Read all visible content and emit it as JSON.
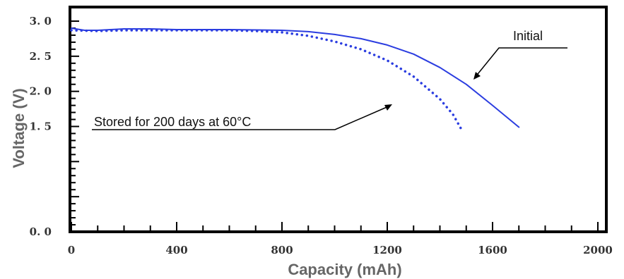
{
  "chart_data": {
    "type": "line",
    "title": "",
    "xlabel": "Capacity (mAh)",
    "ylabel": "Voltage (V)",
    "xlim": [
      0,
      2000
    ],
    "ylim": [
      0,
      3.0
    ],
    "x_ticks": [
      "0",
      "400",
      "800",
      "1200",
      "1600",
      "2000"
    ],
    "y_ticks": [
      "0. 0",
      "1. 5",
      "2. 0",
      "2. 5",
      "3. 0"
    ],
    "grid": false,
    "series": [
      {
        "name": "Initial",
        "style": "solid",
        "color": "#2b3de0",
        "points": [
          [
            0,
            2.9
          ],
          [
            50,
            2.87
          ],
          [
            100,
            2.87
          ],
          [
            200,
            2.89
          ],
          [
            300,
            2.89
          ],
          [
            400,
            2.88
          ],
          [
            600,
            2.88
          ],
          [
            800,
            2.87
          ],
          [
            900,
            2.85
          ],
          [
            1000,
            2.81
          ],
          [
            1100,
            2.75
          ],
          [
            1200,
            2.66
          ],
          [
            1300,
            2.53
          ],
          [
            1400,
            2.34
          ],
          [
            1500,
            2.1
          ],
          [
            1600,
            1.8
          ],
          [
            1700,
            1.49
          ]
        ]
      },
      {
        "name": "Stored for 200 days at 60°C",
        "style": "dotted",
        "color": "#2b3de0",
        "points": [
          [
            0,
            2.87
          ],
          [
            100,
            2.86
          ],
          [
            200,
            2.87
          ],
          [
            400,
            2.87
          ],
          [
            600,
            2.87
          ],
          [
            700,
            2.86
          ],
          [
            800,
            2.84
          ],
          [
            900,
            2.79
          ],
          [
            1000,
            2.71
          ],
          [
            1100,
            2.6
          ],
          [
            1200,
            2.44
          ],
          [
            1300,
            2.21
          ],
          [
            1400,
            1.89
          ],
          [
            1450,
            1.67
          ],
          [
            1480,
            1.47
          ]
        ]
      }
    ],
    "annotations": [
      {
        "text": "Initial",
        "points_to": "Initial"
      },
      {
        "text": "Stored for 200 days at 60°C",
        "points_to": "Stored for 200 days at 60°C"
      }
    ]
  }
}
